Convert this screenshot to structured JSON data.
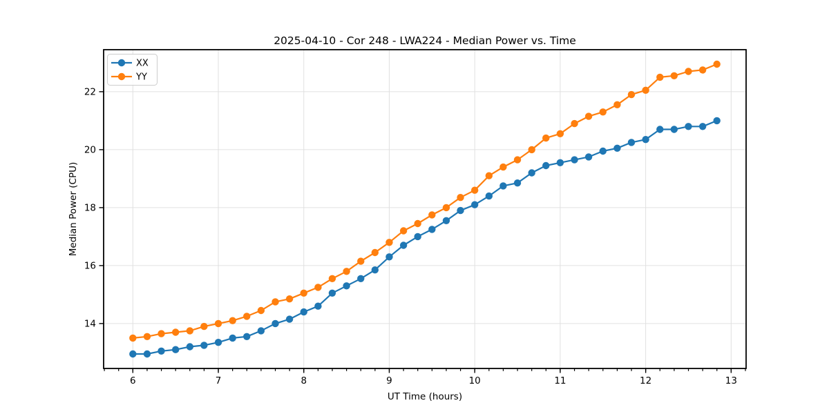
{
  "chart_data": {
    "type": "line",
    "title": "2025-04-10 - Cor 248 - LWA224 - Median Power vs. Time",
    "xlabel": "UT Time (hours)",
    "ylabel": "Median Power (CPU)",
    "x": [
      6.0,
      6.167,
      6.333,
      6.5,
      6.667,
      6.833,
      7.0,
      7.167,
      7.333,
      7.5,
      7.667,
      7.833,
      8.0,
      8.167,
      8.333,
      8.5,
      8.667,
      8.833,
      9.0,
      9.167,
      9.333,
      9.5,
      9.667,
      9.833,
      10.0,
      10.167,
      10.333,
      10.5,
      10.667,
      10.833,
      11.0,
      11.167,
      11.333,
      11.5,
      11.667,
      11.833,
      12.0,
      12.167,
      12.333,
      12.5,
      12.667,
      12.833
    ],
    "series": [
      {
        "name": "XX",
        "color": "#1f77b4",
        "values": [
          12.95,
          12.95,
          13.05,
          13.1,
          13.2,
          13.25,
          13.35,
          13.5,
          13.55,
          13.75,
          14.0,
          14.15,
          14.4,
          14.6,
          15.05,
          15.3,
          15.55,
          15.85,
          16.3,
          16.7,
          17.0,
          17.25,
          17.55,
          17.9,
          18.1,
          18.4,
          18.75,
          18.85,
          19.2,
          19.45,
          19.55,
          19.65,
          19.75,
          19.95,
          20.05,
          20.25,
          20.35,
          20.7,
          20.7,
          20.8,
          20.8,
          21.0
        ]
      },
      {
        "name": "YY",
        "color": "#ff7f0e",
        "values": [
          13.5,
          13.55,
          13.65,
          13.7,
          13.75,
          13.9,
          14.0,
          14.1,
          14.25,
          14.45,
          14.75,
          14.85,
          15.05,
          15.25,
          15.55,
          15.8,
          16.15,
          16.45,
          16.8,
          17.2,
          17.45,
          17.75,
          18.0,
          18.35,
          18.6,
          19.1,
          19.4,
          19.65,
          20.0,
          20.4,
          20.55,
          20.9,
          21.15,
          21.3,
          21.55,
          21.9,
          22.05,
          22.5,
          22.55,
          22.7,
          22.75,
          22.95
        ]
      }
    ],
    "xlim": [
      5.658,
      13.175
    ],
    "ylim": [
      12.45,
      23.45
    ],
    "x_ticks": [
      6,
      7,
      8,
      9,
      10,
      11,
      12,
      13
    ],
    "y_ticks": [
      14,
      16,
      18,
      20,
      22
    ],
    "x_minor_tick_step": 0.16667,
    "grid": true,
    "grid_color": "#e0e0e0",
    "legend_position": "upper left",
    "marker": "circle",
    "line_width": 2.2,
    "marker_radius": 5.2
  }
}
